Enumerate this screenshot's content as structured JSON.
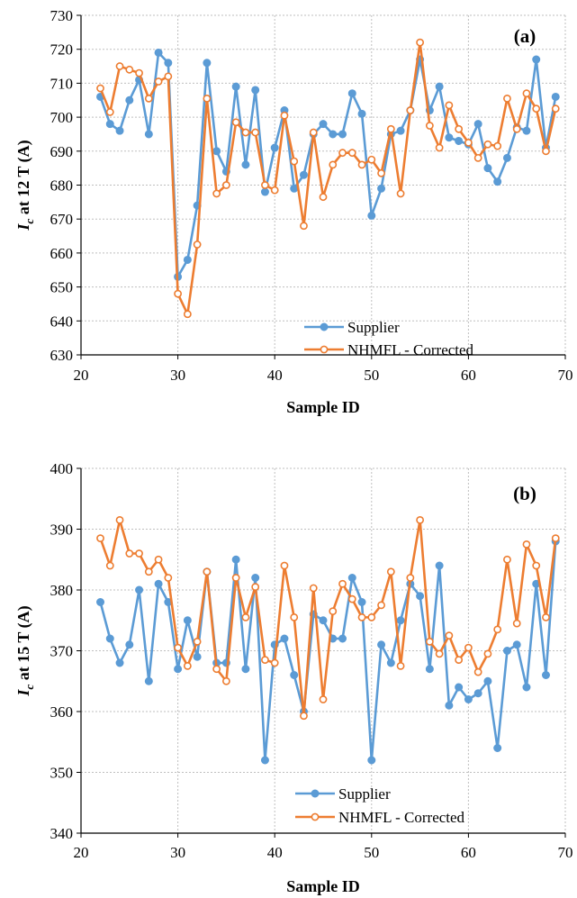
{
  "chart_data": [
    {
      "type": "line",
      "panel_label": "(a)",
      "xlabel": "Sample ID",
      "ylabel_main": "I",
      "ylabel_sub": "c",
      "ylabel_rest": " at 12 T (A)",
      "xlim": [
        20,
        70
      ],
      "ylim": [
        630,
        730
      ],
      "xticks": [
        20,
        30,
        40,
        50,
        60,
        70
      ],
      "yticks": [
        630,
        640,
        650,
        660,
        670,
        680,
        690,
        700,
        710,
        720,
        730
      ],
      "grid": true,
      "legend_position": "bottom-right",
      "series": [
        {
          "name": "Supplier",
          "color": "#5b9bd5",
          "marker": "filled-circle",
          "x": [
            22,
            23,
            24,
            25,
            26,
            27,
            28,
            29,
            30,
            31,
            32,
            33,
            34,
            35,
            36,
            37,
            38,
            39,
            40,
            41,
            42,
            43,
            44,
            45,
            46,
            47,
            48,
            49,
            50,
            51,
            52,
            53,
            54,
            55,
            56,
            57,
            58,
            59,
            60,
            61,
            62,
            63,
            64,
            65,
            66,
            67,
            68,
            69
          ],
          "y": [
            706,
            698,
            696,
            705,
            711,
            695,
            719,
            716,
            653,
            658,
            674,
            716,
            690,
            684,
            709,
            686,
            708,
            678,
            691,
            702,
            679,
            683,
            695,
            698,
            695,
            695,
            707,
            701,
            671,
            679,
            695,
            696,
            702,
            717,
            702,
            709,
            694,
            693,
            692,
            698,
            685,
            681,
            688,
            697,
            696,
            717,
            691,
            706
          ]
        },
        {
          "name": "NHMFL - Corrected",
          "color": "#ed7d31",
          "marker": "open-circle",
          "x": [
            22,
            23,
            24,
            25,
            26,
            27,
            28,
            29,
            30,
            31,
            32,
            33,
            34,
            35,
            36,
            37,
            38,
            39,
            40,
            41,
            42,
            43,
            44,
            45,
            46,
            47,
            48,
            49,
            50,
            51,
            52,
            53,
            54,
            55,
            56,
            57,
            58,
            59,
            60,
            61,
            62,
            63,
            64,
            65,
            66,
            67,
            68,
            69
          ],
          "y": [
            708.5,
            701.5,
            715,
            714,
            713,
            705.5,
            710.5,
            712,
            648,
            642,
            662.5,
            705.5,
            677.5,
            680,
            698.5,
            695.5,
            695.5,
            680,
            678.5,
            700.5,
            687,
            668,
            695.5,
            676.5,
            686,
            689.5,
            689.5,
            686,
            687.5,
            683.5,
            696.5,
            677.5,
            702,
            722,
            697.5,
            691,
            703.5,
            696.5,
            692.5,
            688,
            692,
            691.5,
            705.5,
            696.5,
            707,
            702.5,
            690,
            702.5
          ]
        }
      ]
    },
    {
      "type": "line",
      "panel_label": "(b)",
      "xlabel": "Sample ID",
      "ylabel_main": "I",
      "ylabel_sub": "c",
      "ylabel_rest": " at 15 T (A)",
      "xlim": [
        20,
        70
      ],
      "ylim": [
        340,
        400
      ],
      "xticks": [
        20,
        30,
        40,
        50,
        60,
        70
      ],
      "yticks": [
        340,
        350,
        360,
        370,
        380,
        390,
        400
      ],
      "grid": true,
      "legend_position": "bottom-right",
      "series": [
        {
          "name": "Supplier",
          "color": "#5b9bd5",
          "marker": "filled-circle",
          "x": [
            22,
            23,
            24,
            25,
            26,
            27,
            28,
            29,
            30,
            31,
            32,
            33,
            34,
            35,
            36,
            37,
            38,
            39,
            40,
            41,
            42,
            43,
            44,
            45,
            46,
            47,
            48,
            49,
            50,
            51,
            52,
            53,
            54,
            55,
            56,
            57,
            58,
            59,
            60,
            61,
            62,
            63,
            64,
            65,
            66,
            67,
            68,
            69
          ],
          "y": [
            378,
            372,
            368,
            371,
            380,
            365,
            381,
            378,
            367,
            375,
            369,
            383,
            368,
            368,
            385,
            367,
            382,
            352,
            371,
            372,
            366,
            360,
            376,
            375,
            372,
            372,
            382,
            378,
            352,
            371,
            368,
            375,
            381,
            379,
            367,
            384,
            361,
            364,
            362,
            363,
            365,
            354,
            370,
            371,
            364,
            381,
            366,
            388
          ]
        },
        {
          "name": "NHMFL - Corrected",
          "color": "#ed7d31",
          "marker": "open-circle",
          "x": [
            22,
            23,
            24,
            25,
            26,
            27,
            28,
            29,
            30,
            31,
            32,
            33,
            34,
            35,
            36,
            37,
            38,
            39,
            40,
            41,
            42,
            43,
            44,
            45,
            46,
            47,
            48,
            49,
            50,
            51,
            52,
            53,
            54,
            55,
            56,
            57,
            58,
            59,
            60,
            61,
            62,
            63,
            64,
            65,
            66,
            67,
            68,
            69
          ],
          "y": [
            388.5,
            384,
            391.5,
            386,
            386,
            383,
            385,
            382,
            370.5,
            367.5,
            371.5,
            383,
            367,
            365,
            382,
            375.5,
            380.5,
            368.5,
            368,
            384,
            375.5,
            359.3,
            380.3,
            362,
            376.5,
            381,
            378.5,
            375.5,
            375.5,
            377.5,
            383,
            367.5,
            382,
            391.5,
            371.5,
            369.5,
            372.5,
            368.5,
            370.5,
            366.5,
            369.5,
            373.5,
            385,
            374.5,
            387.5,
            384,
            375.5,
            388.5
          ]
        }
      ]
    }
  ]
}
